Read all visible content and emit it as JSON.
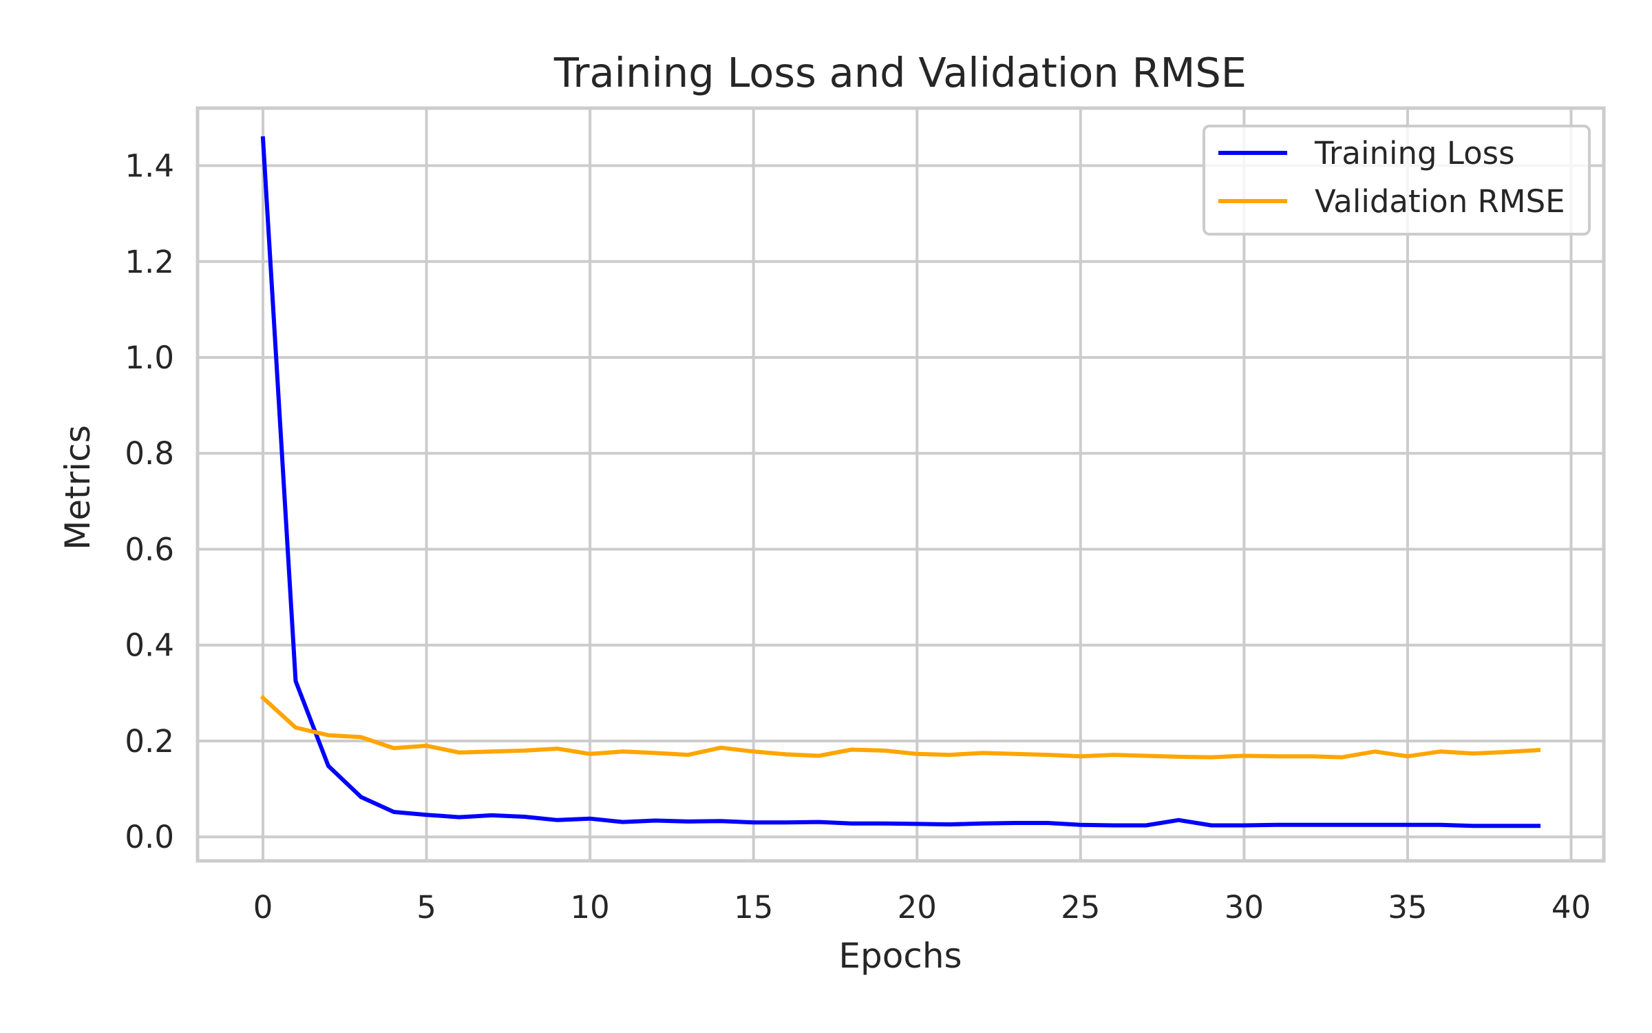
{
  "chart_data": {
    "type": "line",
    "title": "Training Loss and Validation RMSE",
    "xlabel": "Epochs",
    "ylabel": "Metrics",
    "xlim": [
      -2,
      41
    ],
    "ylim": [
      -0.05,
      1.52
    ],
    "xticks": [
      0,
      5,
      10,
      15,
      20,
      25,
      30,
      35,
      40
    ],
    "xtick_labels": [
      "0",
      "5",
      "10",
      "15",
      "20",
      "25",
      "30",
      "35",
      "40"
    ],
    "yticks": [
      0.0,
      0.2,
      0.4,
      0.6,
      0.8,
      1.0,
      1.2,
      1.4
    ],
    "ytick_labels": [
      "0.0",
      "0.2",
      "0.4",
      "0.6",
      "0.8",
      "1.0",
      "1.2",
      "1.4"
    ],
    "grid": true,
    "legend_position": "top-right",
    "x": [
      0,
      1,
      2,
      3,
      4,
      5,
      6,
      7,
      8,
      9,
      10,
      11,
      12,
      13,
      14,
      15,
      16,
      17,
      18,
      19,
      20,
      21,
      22,
      23,
      24,
      25,
      26,
      27,
      28,
      29,
      30,
      31,
      32,
      33,
      34,
      35,
      36,
      37,
      38,
      39
    ],
    "series": [
      {
        "name": "Training Loss",
        "color": "#0000ff",
        "values": [
          1.457,
          0.325,
          0.148,
          0.083,
          0.052,
          0.046,
          0.041,
          0.045,
          0.042,
          0.035,
          0.038,
          0.031,
          0.034,
          0.032,
          0.033,
          0.03,
          0.03,
          0.031,
          0.028,
          0.028,
          0.027,
          0.026,
          0.028,
          0.029,
          0.029,
          0.025,
          0.024,
          0.024,
          0.035,
          0.024,
          0.024,
          0.025,
          0.025,
          0.025,
          0.025,
          0.025,
          0.025,
          0.023,
          0.023,
          0.023
        ]
      },
      {
        "name": "Validation RMSE",
        "color": "#ffa500",
        "values": [
          0.29,
          0.228,
          0.212,
          0.208,
          0.185,
          0.19,
          0.176,
          0.178,
          0.18,
          0.184,
          0.173,
          0.178,
          0.175,
          0.171,
          0.186,
          0.178,
          0.172,
          0.169,
          0.182,
          0.18,
          0.173,
          0.171,
          0.175,
          0.173,
          0.171,
          0.168,
          0.171,
          0.169,
          0.167,
          0.166,
          0.169,
          0.168,
          0.168,
          0.166,
          0.178,
          0.168,
          0.178,
          0.174,
          0.177,
          0.181
        ]
      }
    ]
  }
}
